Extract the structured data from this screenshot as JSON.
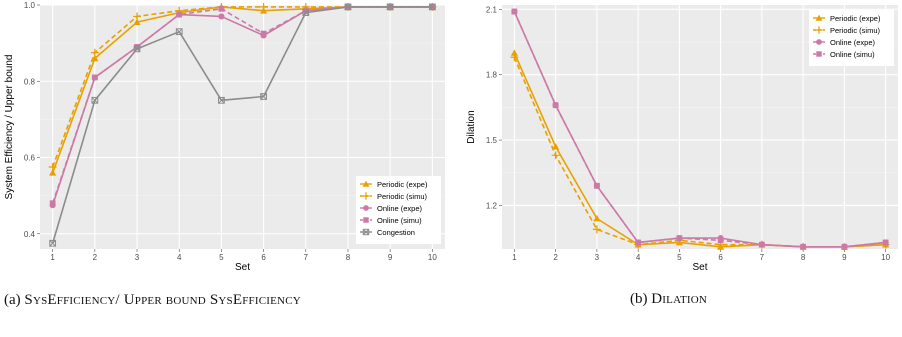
{
  "colors": {
    "periodic": "#e8a100",
    "online": "#cc79a7",
    "congestion": "#8c8c8c",
    "panel": "#ebebeb",
    "grid": "#ffffff"
  },
  "captions": {
    "a_prefix": "(a) ",
    "a_text": "SysEfficiency/ Upper bound SysEfficiency",
    "b_prefix": "(b) ",
    "b_text": "Dilation"
  },
  "chart_data": [
    {
      "type": "line",
      "xlabel": "Set",
      "ylabel": "System Efficiency / Upper bound",
      "x": [
        1,
        2,
        3,
        4,
        5,
        6,
        7,
        8,
        9,
        10
      ],
      "ylim": [
        0.36,
        1.0
      ],
      "yticks": [
        0.4,
        0.6,
        0.8,
        1.0
      ],
      "ytick_labels": [
        "0.4",
        "0.6",
        "0.8",
        "1.0"
      ],
      "grid": true,
      "legend_position": "bottom-right",
      "series": [
        {
          "name": "Periodic (expe)",
          "color": "periodic",
          "dash": false,
          "marker": "triangle",
          "values": [
            0.56,
            0.86,
            0.955,
            0.98,
            0.995,
            0.985,
            0.99,
            0.995,
            0.995,
            0.995
          ]
        },
        {
          "name": "Periodic (simu)",
          "color": "periodic",
          "dash": true,
          "marker": "plus",
          "values": [
            0.575,
            0.875,
            0.97,
            0.985,
            0.995,
            0.995,
            0.995,
            0.995,
            0.995,
            0.995
          ]
        },
        {
          "name": "Online (expe)",
          "color": "online",
          "dash": false,
          "marker": "circle",
          "values": [
            0.475,
            0.81,
            0.89,
            0.975,
            0.97,
            0.92,
            0.985,
            0.995,
            0.995,
            0.995
          ]
        },
        {
          "name": "Online (simu)",
          "color": "online",
          "dash": true,
          "marker": "square",
          "values": [
            0.48,
            0.81,
            0.89,
            0.975,
            0.99,
            0.925,
            0.985,
            0.995,
            0.995,
            0.995
          ]
        },
        {
          "name": "Congestion",
          "color": "congestion",
          "dash": false,
          "marker": "boxx",
          "values": [
            0.375,
            0.75,
            0.885,
            0.93,
            0.75,
            0.76,
            0.98,
            0.995,
            0.995,
            0.995
          ]
        }
      ]
    },
    {
      "type": "line",
      "xlabel": "Set",
      "ylabel": "Dilation",
      "x": [
        1,
        2,
        3,
        4,
        5,
        6,
        7,
        8,
        9,
        10
      ],
      "ylim": [
        1.0,
        2.12
      ],
      "yticks": [
        1.2,
        1.5,
        1.8,
        2.1
      ],
      "ytick_labels": [
        "1.2",
        "1.5",
        "1.8",
        "2.1"
      ],
      "grid": true,
      "legend_position": "top-right",
      "series": [
        {
          "name": "Periodic (expe)",
          "color": "periodic",
          "dash": false,
          "marker": "triangle",
          "values": [
            1.9,
            1.47,
            1.14,
            1.02,
            1.03,
            1.01,
            1.02,
            1.01,
            1.01,
            1.02
          ]
        },
        {
          "name": "Periodic (simu)",
          "color": "periodic",
          "dash": true,
          "marker": "plus",
          "values": [
            1.88,
            1.43,
            1.09,
            1.02,
            1.04,
            1.02,
            1.02,
            1.01,
            1.01,
            1.02
          ]
        },
        {
          "name": "Online (expe)",
          "color": "online",
          "dash": false,
          "marker": "circle",
          "values": [
            2.09,
            1.66,
            1.29,
            1.03,
            1.05,
            1.05,
            1.02,
            1.01,
            1.01,
            1.03
          ]
        },
        {
          "name": "Online (simu)",
          "color": "online",
          "dash": true,
          "marker": "square",
          "values": [
            2.09,
            1.66,
            1.29,
            1.03,
            1.05,
            1.04,
            1.02,
            1.01,
            1.01,
            1.03
          ]
        }
      ]
    }
  ]
}
